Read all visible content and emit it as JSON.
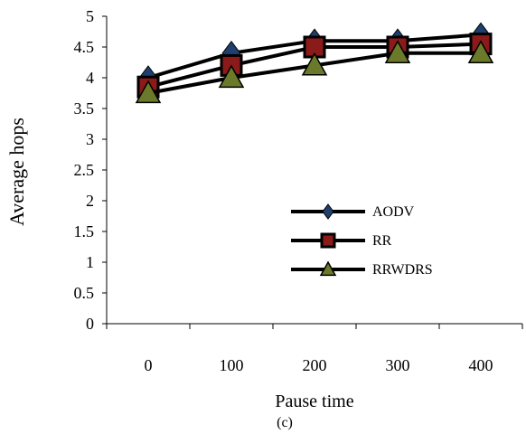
{
  "chart_data": {
    "type": "line",
    "categories": [
      "0",
      "100",
      "200",
      "300",
      "400"
    ],
    "series": [
      {
        "name": "AODV",
        "values": [
          4.0,
          4.4,
          4.6,
          4.6,
          4.7
        ],
        "marker": "diamond",
        "marker_fill": "#1f3f6e"
      },
      {
        "name": "RR",
        "values": [
          3.85,
          4.2,
          4.5,
          4.5,
          4.55
        ],
        "marker": "square",
        "marker_fill": "#8b1a1a"
      },
      {
        "name": "RRWDRS",
        "values": [
          3.75,
          4.0,
          4.2,
          4.4,
          4.4
        ],
        "marker": "triangle",
        "marker_fill": "#6b7a2a"
      }
    ],
    "ylim": [
      0,
      5
    ],
    "yticks": [
      "0",
      "0.5",
      "1",
      "1.5",
      "2",
      "2.5",
      "3",
      "3.5",
      "4",
      "4.5",
      "5"
    ],
    "xlabel": "Pause time",
    "ylabel": "Average hops",
    "caption": "(c)",
    "legend_position": "center-right",
    "grid": false,
    "line_color": "#000000"
  }
}
